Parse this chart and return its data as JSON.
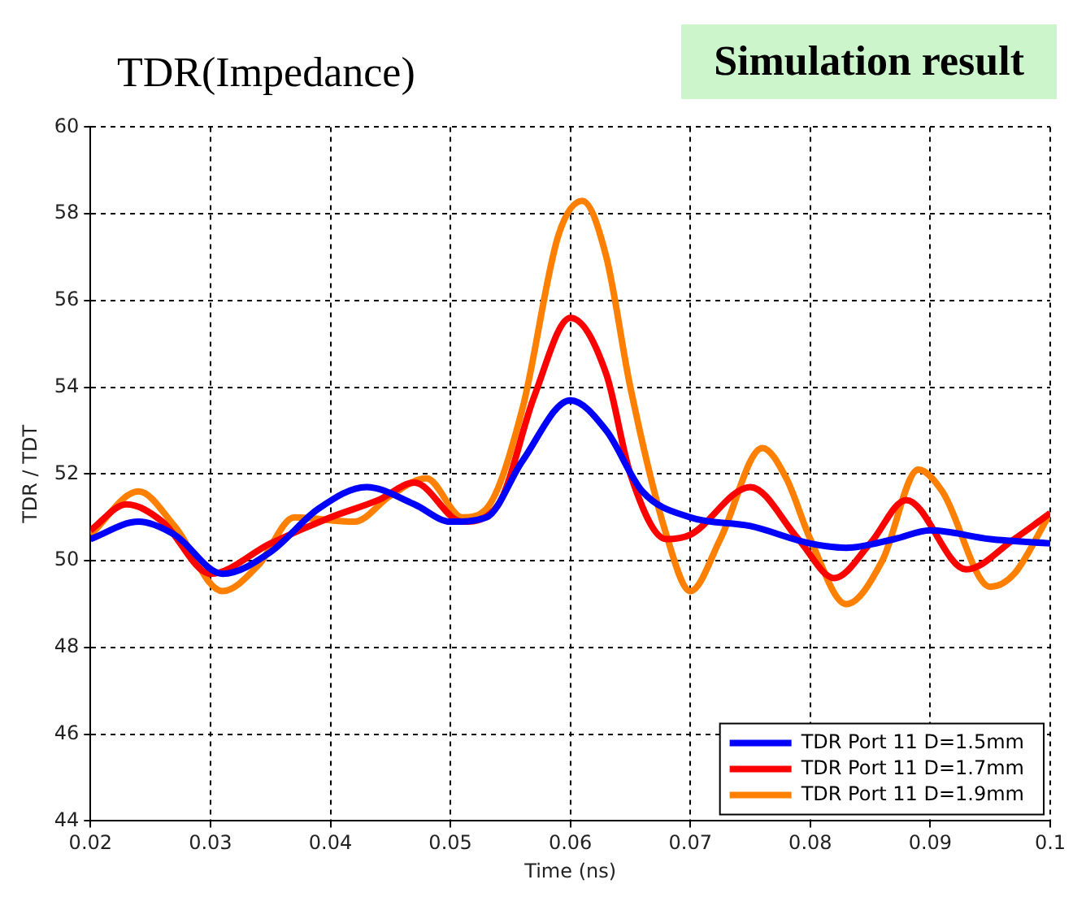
{
  "chart_data": {
    "type": "line",
    "title": "TDR(Impedance)",
    "annotations": [
      "Simulation result"
    ],
    "xlabel": "Time (ns)",
    "ylabel": "TDR / TDT",
    "xlim": [
      0.02,
      0.1
    ],
    "xticks": [
      0.02,
      0.03,
      0.04,
      0.05,
      0.06,
      0.07,
      0.08,
      0.09,
      0.1
    ],
    "ylim": [
      44,
      60
    ],
    "yticks": [
      44,
      46,
      48,
      50,
      52,
      54,
      56,
      58,
      60
    ],
    "grid": true,
    "legend": "bottom right",
    "marker": "none",
    "line_style": "solid",
    "series": [
      {
        "name": "TDR Port 11 D=1.5mm",
        "color": "#0000ff",
        "x": [
          0.02,
          0.024,
          0.027,
          0.031,
          0.035,
          0.039,
          0.043,
          0.047,
          0.05,
          0.053,
          0.056,
          0.06,
          0.063,
          0.066,
          0.07,
          0.075,
          0.08,
          0.083,
          0.087,
          0.09,
          0.095,
          0.1
        ],
        "values": [
          50.5,
          50.9,
          50.6,
          49.7,
          50.2,
          51.2,
          51.7,
          51.3,
          50.9,
          51.0,
          52.3,
          53.7,
          53.0,
          51.6,
          51.0,
          50.8,
          50.4,
          50.3,
          50.5,
          50.7,
          50.5,
          50.4
        ]
      },
      {
        "name": "TDR Port 11 D=1.7mm",
        "color": "#ff0000",
        "x": [
          0.02,
          0.023,
          0.026,
          0.03,
          0.035,
          0.04,
          0.044,
          0.047,
          0.051,
          0.054,
          0.057,
          0.06,
          0.063,
          0.065,
          0.068,
          0.07,
          0.075,
          0.079,
          0.082,
          0.085,
          0.088,
          0.093,
          0.097,
          0.1
        ],
        "values": [
          50.7,
          51.3,
          50.9,
          49.7,
          50.4,
          51.0,
          51.4,
          51.8,
          50.9,
          51.3,
          53.8,
          55.6,
          54.3,
          52.0,
          50.5,
          50.6,
          51.7,
          50.5,
          49.6,
          50.4,
          51.4,
          49.8,
          50.5,
          51.1
        ]
      },
      {
        "name": "TDR Port 11 D=1.9mm",
        "color": "#ff8000",
        "x": [
          0.02,
          0.024,
          0.027,
          0.031,
          0.034,
          0.037,
          0.042,
          0.045,
          0.048,
          0.051,
          0.053,
          0.056,
          0.059,
          0.061,
          0.063,
          0.065,
          0.068,
          0.07,
          0.0725,
          0.076,
          0.078,
          0.08,
          0.083,
          0.086,
          0.089,
          0.091,
          0.095,
          0.097,
          0.1
        ],
        "values": [
          50.6,
          51.6,
          50.8,
          49.3,
          49.9,
          51.0,
          50.9,
          51.5,
          51.9,
          51.0,
          51.2,
          53.5,
          57.5,
          58.3,
          57.0,
          54.0,
          50.6,
          49.3,
          50.5,
          52.6,
          51.9,
          50.5,
          49.0,
          50.0,
          52.1,
          51.6,
          49.4,
          49.7,
          51.1
        ]
      }
    ]
  }
}
